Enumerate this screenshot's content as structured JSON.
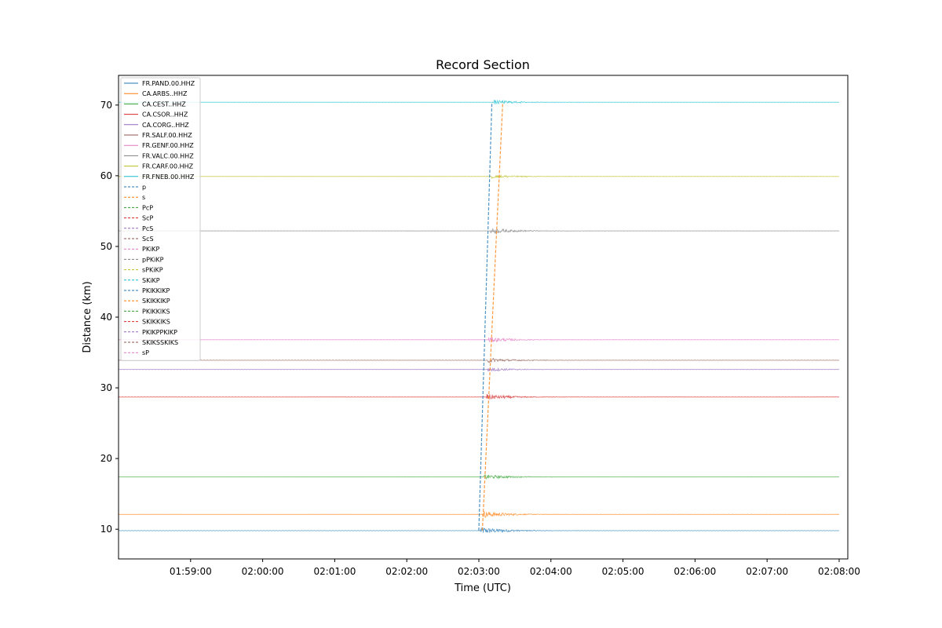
{
  "chart_data": {
    "type": "line",
    "title": "Record Section",
    "xlabel": "Time (UTC)",
    "ylabel": "Distance (km)",
    "x_tick_labels": [
      "01:59:00",
      "02:00:00",
      "02:01:00",
      "02:02:00",
      "02:03:00",
      "02:04:00",
      "02:05:00",
      "02:06:00",
      "02:07:00",
      "02:08:00"
    ],
    "x_tick_minutes": [
      -4,
      -3,
      -2,
      -1,
      0,
      1,
      2,
      3,
      4,
      5
    ],
    "x_range_minutes": [
      -5.0,
      5.12
    ],
    "y_ticks": [
      10,
      20,
      30,
      40,
      50,
      60,
      70
    ],
    "ylim": [
      5.8,
      74.2
    ],
    "legend_position": "upper-left",
    "series": [
      {
        "name": "FR.PAND.00.HHZ",
        "distance": 9.8,
        "color": "#1f77b4",
        "onset": 0.02,
        "amp": 1.2,
        "end": 5.0
      },
      {
        "name": "CA.ARBS..HHZ",
        "distance": 12.1,
        "color": "#ff7f0e",
        "onset": 0.05,
        "amp": 1.1,
        "end": 5.0
      },
      {
        "name": "CA.CEST..HHZ",
        "distance": 17.4,
        "color": "#2ca02c",
        "onset": 0.07,
        "amp": 0.8,
        "end": 5.0
      },
      {
        "name": "CA.CSOR..HHZ",
        "distance": 28.7,
        "color": "#d62728",
        "onset": 0.1,
        "amp": 1.0,
        "end": 5.0
      },
      {
        "name": "CA.CORG..HHZ",
        "distance": 32.6,
        "color": "#9467bd",
        "onset": 0.12,
        "amp": 0.7,
        "end": 5.0
      },
      {
        "name": "FR.SALF.00.HHZ",
        "distance": 33.9,
        "color": "#8c564b",
        "onset": 0.12,
        "amp": 0.8,
        "end": 5.0
      },
      {
        "name": "FR.GENF.00.HHZ",
        "distance": 36.8,
        "color": "#e377c2",
        "onset": 0.13,
        "amp": 0.9,
        "end": 5.0
      },
      {
        "name": "FR.VALC.00.HHZ",
        "distance": 52.2,
        "color": "#7f7f7f",
        "onset": 0.16,
        "amp": 0.9,
        "end": 5.0
      },
      {
        "name": "FR.CARF.00.HHZ",
        "distance": 59.9,
        "color": "#bcbd22",
        "onset": 0.18,
        "amp": 0.6,
        "end": 5.0
      },
      {
        "name": "FR.FNEB.00.HHZ",
        "distance": 70.4,
        "color": "#17becf",
        "onset": 0.2,
        "amp": 0.7,
        "end": 5.0
      }
    ],
    "phases": [
      {
        "name": "p",
        "color": "#1f77b4",
        "t_at_10": 0.0,
        "t_at_70": 0.18
      },
      {
        "name": "s",
        "color": "#ff7f0e",
        "t_at_10": 0.05,
        "t_at_70": 0.33
      },
      {
        "name": "PcP",
        "color": "#2ca02c"
      },
      {
        "name": "ScP",
        "color": "#d62728"
      },
      {
        "name": "PcS",
        "color": "#9467bd"
      },
      {
        "name": "ScS",
        "color": "#8c564b"
      },
      {
        "name": "PKiKP",
        "color": "#e377c2"
      },
      {
        "name": "pPKiKP",
        "color": "#7f7f7f"
      },
      {
        "name": "sPKiKP",
        "color": "#bcbd22"
      },
      {
        "name": "SKiKP",
        "color": "#17becf"
      },
      {
        "name": "PKIKKIKP",
        "color": "#1f77b4"
      },
      {
        "name": "SKIKKIKP",
        "color": "#ff7f0e"
      },
      {
        "name": "PKIKKIKS",
        "color": "#2ca02c"
      },
      {
        "name": "SKIKKIKS",
        "color": "#d62728"
      },
      {
        "name": "PKIKPPKIKP",
        "color": "#9467bd"
      },
      {
        "name": "SKIKSSKIKS",
        "color": "#8c564b"
      },
      {
        "name": "sP",
        "color": "#e377c2"
      }
    ]
  }
}
